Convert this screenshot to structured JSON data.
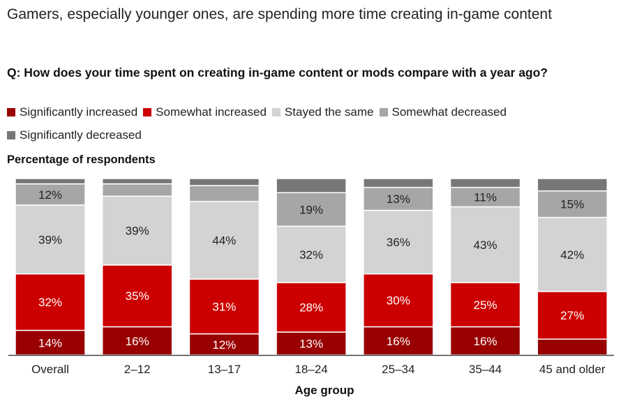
{
  "title": "Gamers, especially younger ones, are spending more time creating in-game content",
  "question": "Q: How does your time spent on creating in-game content or mods compare with a year ago?",
  "chart_data": {
    "type": "bar",
    "stacked": true,
    "ylabel": "Percentage of respondents",
    "xlabel": "Age group",
    "ylim": [
      0,
      100
    ],
    "grid": false,
    "legend": "top",
    "categories": [
      "Overall",
      "2–12",
      "13–17",
      "18–24",
      "25–34",
      "35–44",
      "45 and older"
    ],
    "series": [
      {
        "name": "Significantly increased",
        "color": "#990000",
        "label_color": "#ffffff",
        "values": [
          14,
          16,
          12,
          13,
          16,
          16,
          9
        ],
        "labeled": [
          true,
          true,
          true,
          true,
          true,
          true,
          false
        ]
      },
      {
        "name": "Somewhat increased",
        "color": "#cc0000",
        "label_color": "#ffffff",
        "values": [
          32,
          35,
          31,
          28,
          30,
          25,
          27
        ],
        "labeled": [
          true,
          true,
          true,
          true,
          true,
          true,
          true
        ]
      },
      {
        "name": "Stayed the same",
        "color": "#d3d3d3",
        "label_color": "#222222",
        "values": [
          39,
          39,
          44,
          32,
          36,
          43,
          42
        ],
        "labeled": [
          true,
          true,
          true,
          true,
          true,
          true,
          true
        ]
      },
      {
        "name": "Somewhat decreased",
        "color": "#a6a6a6",
        "label_color": "#222222",
        "values": [
          12,
          7,
          9,
          19,
          13,
          11,
          15
        ],
        "labeled": [
          true,
          false,
          false,
          true,
          true,
          true,
          true
        ]
      },
      {
        "name": "Significantly decreased",
        "color": "#777777",
        "label_color": "#ffffff",
        "values": [
          3,
          3,
          4,
          8,
          5,
          5,
          7
        ],
        "labeled": [
          false,
          false,
          false,
          false,
          false,
          false,
          false
        ]
      }
    ]
  }
}
